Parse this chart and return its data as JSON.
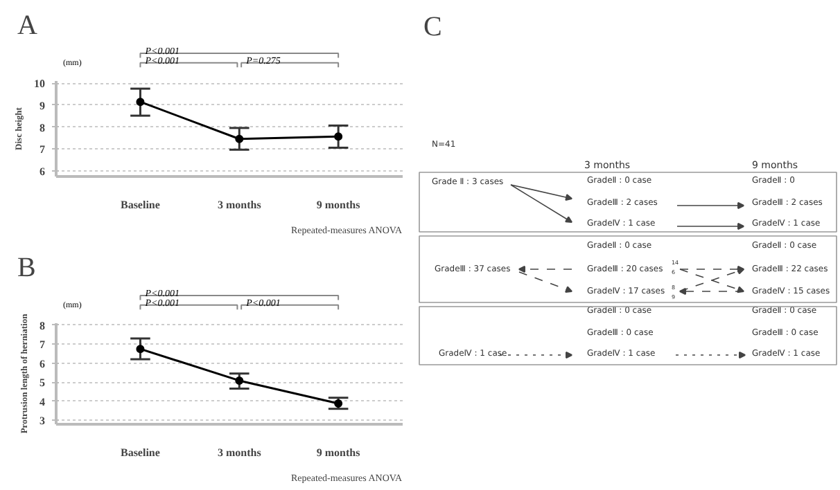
{
  "chart_data": [
    {
      "type": "line",
      "title": "A",
      "ylabel": "Disc height",
      "categories": [
        "Baseline",
        "3 months",
        "9 months"
      ],
      "series": [
        {
          "color": "#000000",
          "values": [
            9.15,
            7.46,
            7.57
          ],
          "errors": [
            [
              8.52,
              9.75
            ],
            [
              6.97,
              7.96
            ],
            [
              7.06,
              8.07
            ]
          ]
        }
      ],
      "ylim": [
        5.75,
        10.1
      ],
      "yticks": [
        6,
        7,
        8,
        9,
        10
      ],
      "grid": "y",
      "marker": "circle",
      "line_style": "solid",
      "annotations": [
        "(mm)",
        "P<0.001",
        "P<0.001",
        "P=0.275",
        "Repeated-measures ANOVA"
      ]
    },
    {
      "type": "line",
      "title": "B",
      "ylabel": "Protrusion length of herniation",
      "categories": [
        "Baseline",
        "3 months",
        "9 months"
      ],
      "series": [
        {
          "color": "#000000",
          "values": [
            6.75,
            5.09,
            3.89
          ],
          "errors": [
            [
              6.21,
              7.3
            ],
            [
              4.67,
              5.46
            ],
            [
              3.61,
              4.19
            ]
          ]
        }
      ],
      "ylim": [
        2.8,
        8.1
      ],
      "yticks": [
        3,
        4,
        5,
        6,
        7,
        8
      ],
      "grid": "y",
      "marker": "circle",
      "line_style": "solid",
      "annotations": [
        "(mm)",
        "P<0.001",
        "P<0.001",
        "P<0.001",
        "Repeated-measures ANOVA"
      ]
    },
    {
      "type": "other",
      "title": "C",
      "annotations": [
        "N=41",
        "3 months",
        "9 months",
        "Grade Ⅱ : 3 cases",
        "GradeⅡ : 0 case",
        "GradeⅢ : 2 cases",
        "GradeⅣ : 1 case",
        "GradeⅡ : 0",
        "GradeⅢ : 2 cases",
        "GradeⅣ : 1 case",
        "GradeⅢ : 37 cases",
        "GradeⅡ : 0 case",
        "GradeⅢ : 20 cases",
        "GradeⅣ : 17 cases",
        "GradeⅡ : 0 case",
        "GradeⅢ : 22 cases",
        "GradeⅣ : 15 cases",
        "14",
        "6",
        "8",
        "9",
        "GradeⅣ : 1 case",
        "GradeⅡ : 0 case",
        "GradeⅢ : 0 case",
        "GradeⅣ : 1 case",
        "GradeⅡ : 0 case",
        "GradeⅢ : 0 case",
        "GradeⅣ : 1 case"
      ]
    }
  ]
}
